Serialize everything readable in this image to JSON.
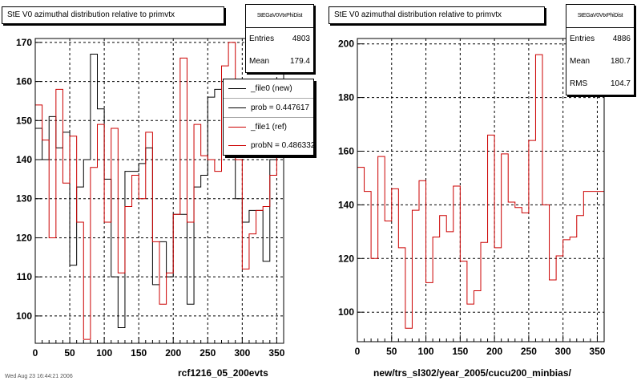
{
  "chart_data": [
    {
      "type": "step-histogram",
      "title": "StE V0 azimuthal distribution relative to primvtx",
      "xlabel": "rcf1216_05_200evts",
      "ylabel": "",
      "xlim": [
        0,
        360
      ],
      "ylim": [
        93,
        171
      ],
      "xticks": [
        0,
        50,
        100,
        150,
        200,
        250,
        300,
        350
      ],
      "yticks": [
        100,
        110,
        120,
        130,
        140,
        150,
        160,
        170
      ],
      "grid": true,
      "stats": {
        "name": "StEGaV0VtxPhiDist",
        "entries_label": "Entries",
        "entries": "4803",
        "mean_label": "Mean",
        "mean": "179.4"
      },
      "legend_position": "top-right",
      "legend": [
        {
          "label": "_file0 (new)",
          "color": "#000000"
        },
        {
          "label": "prob = 0.447617",
          "color": "#000000"
        },
        {
          "label": "_file1 (ref)",
          "color": "#cc0000"
        },
        {
          "label": "probN = 0.486332",
          "color": "#cc0000"
        }
      ],
      "bin_edges": [
        0,
        10,
        20,
        30,
        40,
        50,
        60,
        70,
        80,
        90,
        100,
        110,
        120,
        130,
        140,
        150,
        160,
        170,
        180,
        190,
        200,
        210,
        220,
        230,
        240,
        250,
        260,
        270,
        280,
        290,
        300,
        310,
        320,
        330,
        340,
        350,
        360
      ],
      "series": [
        {
          "name": "_file0 (new)",
          "color": "#000000",
          "values": [
            148,
            140,
            151,
            143,
            147,
            113,
            133,
            140,
            167,
            153,
            135,
            110,
            97,
            137,
            137,
            139,
            143,
            108,
            119,
            110,
            126,
            126,
            103,
            133,
            136,
            156,
            158,
            160,
            156,
            130,
            124,
            127,
            127,
            114,
            140,
            150
          ]
        },
        {
          "name": "_file1 (ref)",
          "color": "#cc0000",
          "values": [
            154,
            145,
            120,
            158,
            134,
            146,
            124,
            94,
            138,
            149,
            124,
            148,
            111,
            128,
            136,
            130,
            147,
            119,
            103,
            111,
            126,
            166,
            124,
            149,
            141,
            140,
            137,
            164,
            170,
            140,
            112,
            121,
            127,
            128,
            136,
            145
          ]
        }
      ]
    },
    {
      "type": "step-histogram",
      "title": "StE V0 azimuthal distribution relative to primvtx",
      "xlabel": "new/trs_sl302/year_2005/cucu200_minbias/",
      "ylabel": "",
      "xlim": [
        0,
        360
      ],
      "ylim": [
        89,
        202
      ],
      "xticks": [
        0,
        50,
        100,
        150,
        200,
        250,
        300,
        350
      ],
      "yticks": [
        100,
        120,
        140,
        160,
        180,
        200
      ],
      "grid": true,
      "stats": {
        "name": "StEGaV0VtxPhiDist",
        "entries_label": "Entries",
        "entries": "4886",
        "mean_label": "Mean",
        "mean": "180.7",
        "rms_label": "RMS",
        "rms": "104.7"
      },
      "bin_edges": [
        0,
        10,
        20,
        30,
        40,
        50,
        60,
        70,
        80,
        90,
        100,
        110,
        120,
        130,
        140,
        150,
        160,
        170,
        180,
        190,
        200,
        210,
        220,
        230,
        240,
        250,
        260,
        270,
        280,
        290,
        300,
        310,
        320,
        330,
        340,
        350,
        360
      ],
      "series": [
        {
          "name": "",
          "color": "#cc0000",
          "values": [
            154,
            145,
            120,
            158,
            134,
            146,
            124,
            94,
            138,
            149,
            111,
            128,
            136,
            130,
            147,
            119,
            103,
            108,
            126,
            166,
            124,
            159,
            141,
            139,
            137,
            164,
            196,
            140,
            112,
            121,
            127,
            128,
            136,
            145,
            145,
            145
          ]
        }
      ]
    }
  ],
  "footer_stamp": "Wed Aug 23 16:44:21 2006"
}
